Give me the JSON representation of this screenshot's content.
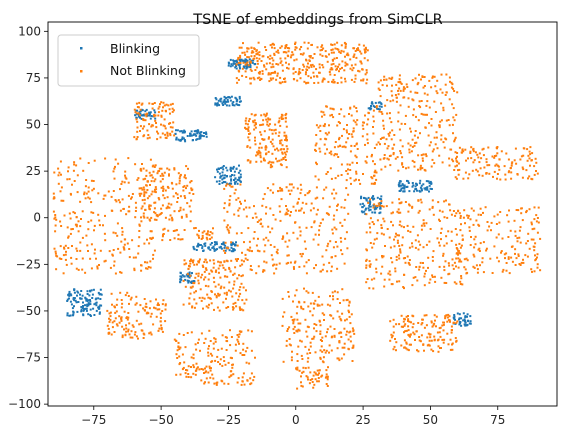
{
  "chart_data": {
    "type": "scatter",
    "title": "TSNE of embeddings from SimCLR",
    "xlabel": "",
    "ylabel": "",
    "xlim": [
      -92,
      97
    ],
    "ylim": [
      -101,
      105
    ],
    "xticks": [
      -75,
      -50,
      -25,
      0,
      25,
      50,
      75
    ],
    "yticks": [
      -100,
      -75,
      -50,
      -25,
      0,
      25,
      50,
      75,
      100
    ],
    "grid": false,
    "legend_position": "top-left",
    "series": [
      {
        "name": "Blinking",
        "color": "#1f77b4",
        "clusters": [
          {
            "x": [
              -25,
              -15
            ],
            "y": [
              80,
              85
            ],
            "n": 70
          },
          {
            "x": [
              -60,
              -52
            ],
            "y": [
              53,
              58
            ],
            "n": 40
          },
          {
            "x": [
              -45,
              -33
            ],
            "y": [
              41,
              47
            ],
            "n": 60
          },
          {
            "x": [
              -30,
              -20
            ],
            "y": [
              60,
              65
            ],
            "n": 50
          },
          {
            "x": [
              -30,
              -20
            ],
            "y": [
              18,
              28
            ],
            "n": 70
          },
          {
            "x": [
              -38,
              -22
            ],
            "y": [
              -18,
              -13
            ],
            "n": 70
          },
          {
            "x": [
              -43,
              -37
            ],
            "y": [
              -35,
              -29
            ],
            "n": 35
          },
          {
            "x": [
              -85,
              -72
            ],
            "y": [
              -53,
              -38
            ],
            "n": 110
          },
          {
            "x": [
              24,
              32
            ],
            "y": [
              2,
              12
            ],
            "n": 60
          },
          {
            "x": [
              38,
              51
            ],
            "y": [
              14,
              20
            ],
            "n": 70
          },
          {
            "x": [
              27,
              32
            ],
            "y": [
              58,
              62
            ],
            "n": 20
          },
          {
            "x": [
              58,
              65
            ],
            "y": [
              -58,
              -51
            ],
            "n": 40
          }
        ]
      },
      {
        "name": "Not Blinking",
        "color": "#ff7f0e",
        "clusters": [
          {
            "x": [
              -22,
              27
            ],
            "y": [
              72,
              94
            ],
            "n": 360
          },
          {
            "x": [
              -60,
              -45
            ],
            "y": [
              42,
              62
            ],
            "n": 100
          },
          {
            "x": [
              -19,
              -3
            ],
            "y": [
              27,
              56
            ],
            "n": 160
          },
          {
            "x": [
              7,
              30
            ],
            "y": [
              18,
              60
            ],
            "n": 160
          },
          {
            "x": [
              30,
              60
            ],
            "y": [
              25,
              77
            ],
            "n": 260
          },
          {
            "x": [
              58,
              90
            ],
            "y": [
              20,
              38
            ],
            "n": 130
          },
          {
            "x": [
              -90,
              -52
            ],
            "y": [
              -30,
              32
            ],
            "n": 280
          },
          {
            "x": [
              -58,
              -38
            ],
            "y": [
              -2,
              28
            ],
            "n": 150
          },
          {
            "x": [
              -50,
              -30
            ],
            "y": [
              -12,
              -5
            ],
            "n": 40
          },
          {
            "x": [
              -27,
              20
            ],
            "y": [
              -30,
              18
            ],
            "n": 280
          },
          {
            "x": [
              26,
              62
            ],
            "y": [
              -38,
              10
            ],
            "n": 260
          },
          {
            "x": [
              60,
              91
            ],
            "y": [
              -30,
              6
            ],
            "n": 170
          },
          {
            "x": [
              -42,
              -18
            ],
            "y": [
              -50,
              -22
            ],
            "n": 170
          },
          {
            "x": [
              -70,
              -48
            ],
            "y": [
              -65,
              -40
            ],
            "n": 130
          },
          {
            "x": [
              -45,
              -15
            ],
            "y": [
              -90,
              -60
            ],
            "n": 170
          },
          {
            "x": [
              -5,
              22
            ],
            "y": [
              -78,
              -38
            ],
            "n": 190
          },
          {
            "x": [
              0,
              12
            ],
            "y": [
              -92,
              -80
            ],
            "n": 50
          },
          {
            "x": [
              35,
              60
            ],
            "y": [
              -72,
              -52
            ],
            "n": 150
          }
        ]
      }
    ]
  }
}
